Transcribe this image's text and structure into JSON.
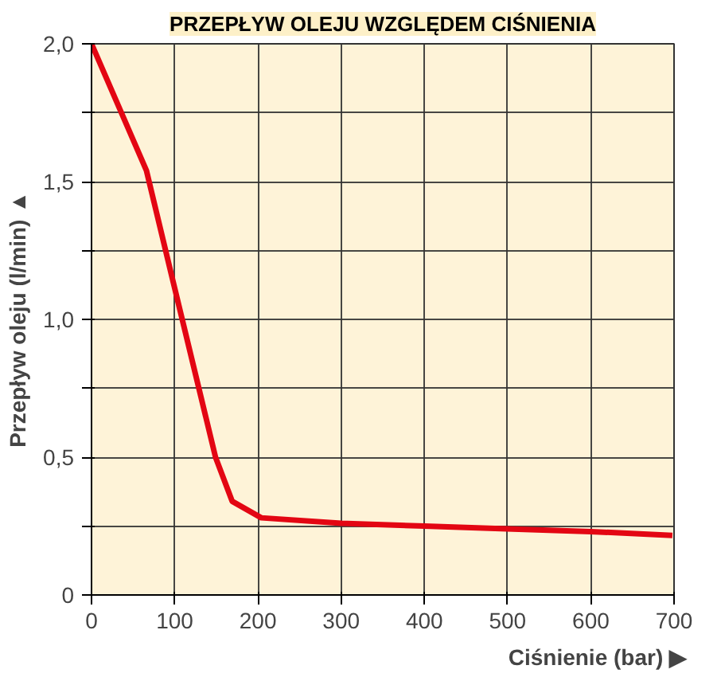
{
  "chart_data": {
    "type": "line",
    "title": "PRZEPŁYW OLEJU WZGLĘDEM CIŚNIENIA",
    "xlabel": "Ciśnienie (bar) ▶",
    "ylabel": "Przepływ oleju (l/min) ▲",
    "x": [
      0,
      66,
      97,
      149,
      169,
      204,
      300,
      400,
      499,
      600,
      698
    ],
    "series": [
      {
        "color": "#e30613",
        "values": [
          2.0,
          1.54,
          1.15,
          0.5,
          0.34,
          0.28,
          0.26,
          0.25,
          0.24,
          0.23,
          0.216
        ]
      }
    ],
    "xlim": [
      0,
      700
    ],
    "ylim": [
      0,
      2.0
    ],
    "xticks": [
      0,
      100,
      200,
      300,
      400,
      500,
      600,
      700
    ],
    "yticks": [
      {
        "value": 0,
        "label": "0"
      },
      {
        "value": 0.25,
        "label": null
      },
      {
        "value": 0.5,
        "label": "0,5"
      },
      {
        "value": 0.75,
        "label": null
      },
      {
        "value": 1.0,
        "label": "1,0"
      },
      {
        "value": 1.25,
        "label": null
      },
      {
        "value": 1.5,
        "label": "1,5"
      },
      {
        "value": 1.75,
        "label": null
      },
      {
        "value": 2.0,
        "label": "2,0"
      }
    ],
    "grid": true,
    "marker": "none",
    "line_style": "solid"
  }
}
